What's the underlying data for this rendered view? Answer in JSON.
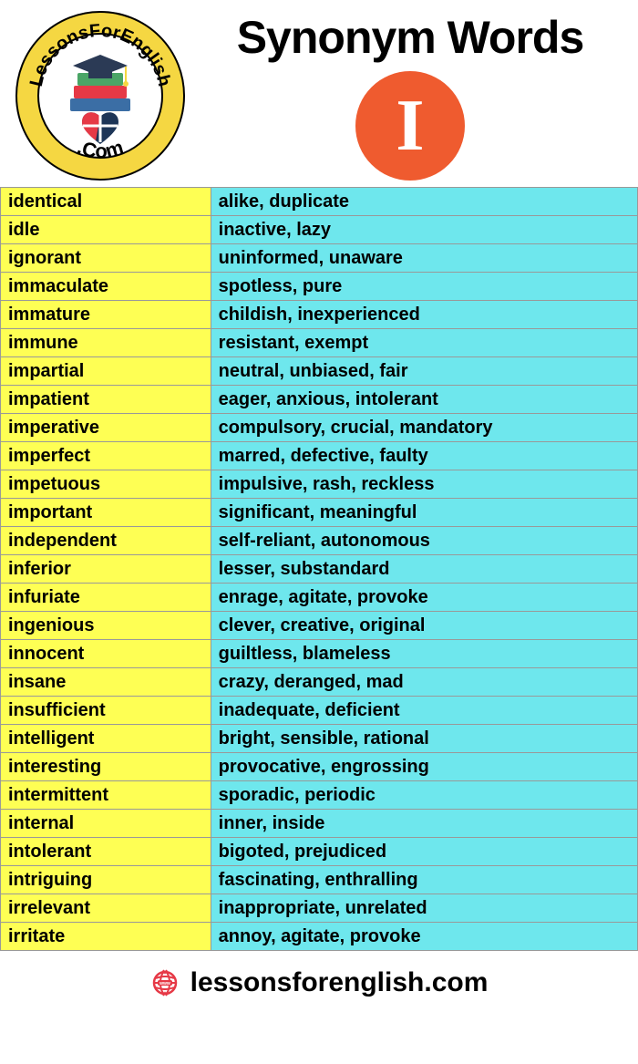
{
  "header": {
    "title": "Synonym Words",
    "letter": "I",
    "logo_text_top": "LessonsForEnglish",
    "logo_text_bottom": ".Com"
  },
  "table": {
    "word_bg": "#feff54",
    "syn_bg": "#6ee7ed",
    "border_color": "#999999",
    "font_size": 20,
    "rows": [
      {
        "word": "identical",
        "syn": "alike, duplicate"
      },
      {
        "word": "idle",
        "syn": "inactive, lazy"
      },
      {
        "word": "ignorant",
        "syn": "uninformed, unaware"
      },
      {
        "word": "immaculate",
        "syn": "spotless, pure"
      },
      {
        "word": "immature",
        "syn": "childish, inexperienced"
      },
      {
        "word": "immune",
        "syn": "resistant, exempt"
      },
      {
        "word": "impartial",
        "syn": "neutral, unbiased, fair"
      },
      {
        "word": "impatient",
        "syn": "eager, anxious, intolerant"
      },
      {
        "word": "imperative",
        "syn": "compulsory, crucial, mandatory"
      },
      {
        "word": "imperfect",
        "syn": "marred, defective, faulty"
      },
      {
        "word": "impetuous",
        "syn": "impulsive, rash, reckless"
      },
      {
        "word": "important",
        "syn": "significant, meaningful"
      },
      {
        "word": "independent",
        "syn": "self-reliant, autonomous"
      },
      {
        "word": "inferior",
        "syn": "lesser, substandard"
      },
      {
        "word": "infuriate",
        "syn": "enrage, agitate, provoke"
      },
      {
        "word": "ingenious",
        "syn": "clever, creative, original"
      },
      {
        "word": "innocent",
        "syn": "guiltless, blameless"
      },
      {
        "word": "insane",
        "syn": "crazy, deranged, mad"
      },
      {
        "word": "insufficient",
        "syn": "inadequate, deficient"
      },
      {
        "word": "intelligent",
        "syn": "bright, sensible, rational"
      },
      {
        "word": "interesting",
        "syn": "provocative, engrossing"
      },
      {
        "word": "intermittent",
        "syn": "sporadic, periodic"
      },
      {
        "word": "internal",
        "syn": "inner, inside"
      },
      {
        "word": "intolerant",
        "syn": "bigoted, prejudiced"
      },
      {
        "word": "intriguing",
        "syn": "fascinating, enthralling"
      },
      {
        "word": "irrelevant",
        "syn": "inappropriate, unrelated"
      },
      {
        "word": "irritate",
        "syn": "annoy, agitate, provoke"
      }
    ]
  },
  "footer": {
    "text": "lessonsforenglish.com",
    "icon_color": "#e63946"
  },
  "colors": {
    "badge_bg": "#ef5b2f",
    "badge_text": "#ffffff",
    "logo_ring": "#f5d742",
    "logo_inner": "#ffffff"
  }
}
